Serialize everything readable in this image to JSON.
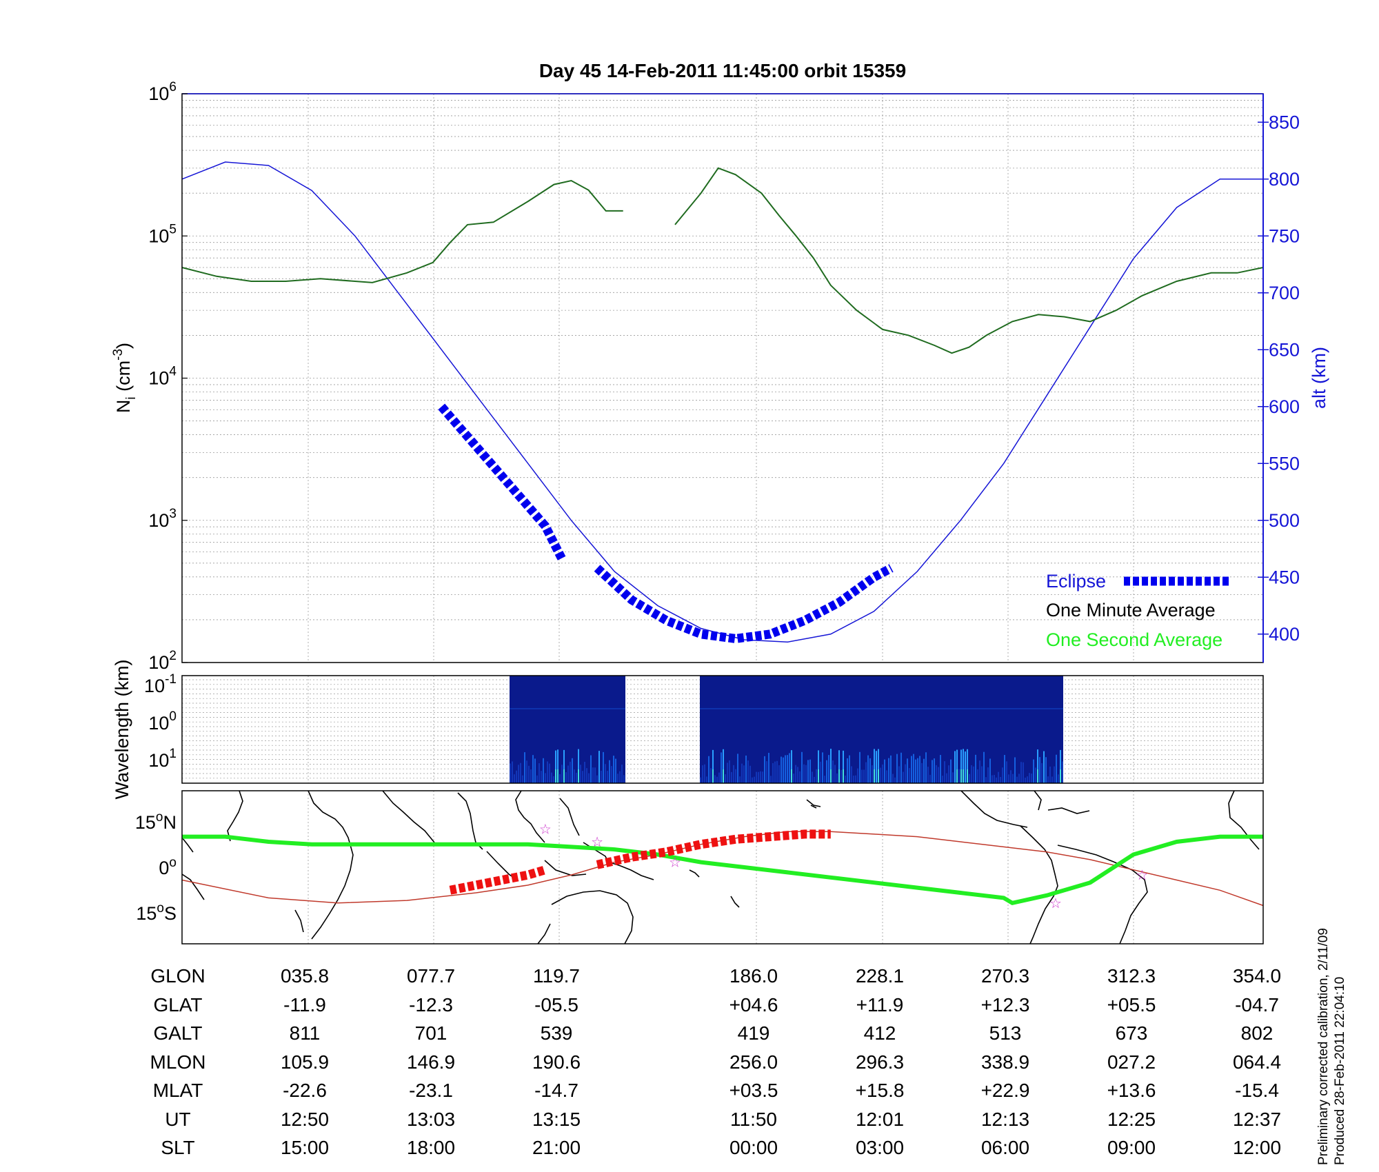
{
  "title": "Day 45  14-Feb-2011 11:45:00   orbit 15359",
  "colors": {
    "density_line": "#1f6b1f",
    "altitude_line": "#1515d6",
    "eclipse": "#0000ee",
    "track": "#22ee22",
    "magnetic_equator": "#c0392b",
    "eclipse_track": "#ee1111",
    "spectrum_bg": "#0a1a8c",
    "grid": "#999999"
  },
  "chart_data": [
    {
      "type": "line",
      "ylabel": "N_i (cm^-3)",
      "ylabel_parts": {
        "base": "N",
        "sub": "i",
        "unit": " (cm",
        "sup": "-3",
        "close": ")"
      },
      "y2label": "alt (km)",
      "yscale": "log",
      "ylim": [
        100,
        1000000
      ],
      "y_ticks": [
        {
          "base": "10",
          "exp": "2"
        },
        {
          "base": "10",
          "exp": "3"
        },
        {
          "base": "10",
          "exp": "4"
        },
        {
          "base": "10",
          "exp": "5"
        },
        {
          "base": "10",
          "exp": "6"
        }
      ],
      "y2lim": [
        375,
        875
      ],
      "y2_ticks": [
        "400",
        "450",
        "500",
        "550",
        "600",
        "650",
        "700",
        "750",
        "800",
        "850"
      ],
      "grid": true,
      "legend": {
        "placement": "bottom-right",
        "entries": [
          {
            "name": "Eclipse",
            "color": "#0000ee"
          },
          {
            "name": "One Minute Average",
            "color": "#000000"
          },
          {
            "name": "One Second Average",
            "color": "#22ee22"
          }
        ]
      },
      "series": [
        {
          "name": "One Minute Average",
          "color": "#1f6b1f",
          "axis": "left",
          "segments": [
            [
              [
                0.0,
                60000
              ],
              [
                0.04,
                52000
              ],
              [
                0.08,
                48000
              ],
              [
                0.12,
                48000
              ],
              [
                0.16,
                50000
              ],
              [
                0.2,
                48000
              ],
              [
                0.22,
                47000
              ],
              [
                0.26,
                55000
              ],
              [
                0.29,
                65000
              ],
              [
                0.31,
                90000
              ],
              [
                0.33,
                120000
              ],
              [
                0.36,
                125000
              ],
              [
                0.4,
                175000
              ],
              [
                0.43,
                230000
              ],
              [
                0.45,
                245000
              ],
              [
                0.47,
                210000
              ],
              [
                0.49,
                150000
              ],
              [
                0.51,
                150000
              ]
            ],
            [
              [
                0.57,
                120000
              ],
              [
                0.6,
                200000
              ],
              [
                0.62,
                300000
              ],
              [
                0.64,
                270000
              ],
              [
                0.67,
                200000
              ],
              [
                0.69,
                140000
              ],
              [
                0.71,
                100000
              ],
              [
                0.73,
                70000
              ],
              [
                0.75,
                45000
              ],
              [
                0.78,
                30000
              ],
              [
                0.81,
                22000
              ],
              [
                0.84,
                20000
              ],
              [
                0.87,
                17000
              ],
              [
                0.89,
                15000
              ],
              [
                0.91,
                16500
              ],
              [
                0.93,
                20000
              ],
              [
                0.96,
                25000
              ],
              [
                0.99,
                28000
              ],
              [
                1.02,
                27000
              ],
              [
                1.05,
                25000
              ],
              [
                1.08,
                30000
              ],
              [
                1.11,
                38000
              ],
              [
                1.15,
                48000
              ],
              [
                1.19,
                55000
              ],
              [
                1.22,
                55000
              ],
              [
                1.25,
                60000
              ]
            ]
          ]
        },
        {
          "name": "alt",
          "color": "#1515d6",
          "axis": "right",
          "x": [
            0.0,
            0.05,
            0.1,
            0.15,
            0.2,
            0.25,
            0.3,
            0.35,
            0.4,
            0.45,
            0.5,
            0.55,
            0.6,
            0.65,
            0.7,
            0.75,
            0.8,
            0.85,
            0.9,
            0.95,
            1.0,
            1.05,
            1.1,
            1.15,
            1.2,
            1.25
          ],
          "y": [
            800,
            815,
            812,
            790,
            750,
            700,
            650,
            600,
            550,
            500,
            455,
            425,
            405,
            395,
            393,
            400,
            420,
            455,
            500,
            550,
            610,
            670,
            730,
            775,
            800,
            800
          ]
        }
      ],
      "eclipse_segments": [
        [
          [
            0.3,
            600
          ],
          [
            0.34,
            565
          ],
          [
            0.38,
            530
          ],
          [
            0.42,
            495
          ],
          [
            0.44,
            465
          ]
        ],
        [
          [
            0.48,
            458
          ],
          [
            0.52,
            430
          ],
          [
            0.56,
            412
          ],
          [
            0.6,
            400
          ],
          [
            0.64,
            396
          ],
          [
            0.68,
            400
          ],
          [
            0.72,
            412
          ],
          [
            0.76,
            428
          ],
          [
            0.8,
            450
          ],
          [
            0.82,
            458
          ]
        ]
      ]
    },
    {
      "type": "heatmap",
      "ylabel": "Wavelength (km)",
      "yscale": "log",
      "y_ticks": [
        {
          "base": "10",
          "exp": "-1"
        },
        {
          "base": "10",
          "exp": "0"
        },
        {
          "base": "10",
          "exp": "1"
        }
      ],
      "data_intervals": [
        [
          0.305,
          0.412
        ],
        [
          0.481,
          0.82
        ]
      ],
      "note": "spectrogram of density irregularities; values shown only as color"
    },
    {
      "type": "line",
      "chart": "orbit-track-map",
      "y_ticks": [
        {
          "deg": "15",
          "sym": "o",
          "hem": "N"
        },
        {
          "deg": "0",
          "sym": "o",
          "hem": ""
        },
        {
          "deg": "15",
          "sym": "o",
          "hem": "S"
        }
      ],
      "ylim": [
        -30,
        30
      ],
      "satellite_track": [
        [
          0.0,
          12
        ],
        [
          0.05,
          12
        ],
        [
          0.1,
          10
        ],
        [
          0.15,
          9
        ],
        [
          0.2,
          9
        ],
        [
          0.25,
          9
        ],
        [
          0.3,
          9
        ],
        [
          0.35,
          9
        ],
        [
          0.4,
          9
        ],
        [
          0.45,
          8
        ],
        [
          0.5,
          7
        ],
        [
          0.55,
          5
        ],
        [
          0.6,
          2
        ],
        [
          0.65,
          0
        ],
        [
          0.7,
          -2
        ],
        [
          0.75,
          -4
        ],
        [
          0.8,
          -6
        ],
        [
          0.85,
          -8
        ],
        [
          0.9,
          -10
        ],
        [
          0.95,
          -12
        ],
        [
          0.96,
          -14
        ],
        [
          1.0,
          -11
        ],
        [
          1.05,
          -6
        ],
        [
          1.1,
          5
        ],
        [
          1.15,
          10
        ],
        [
          1.2,
          12
        ],
        [
          1.25,
          12
        ]
      ],
      "magnetic_equator": [
        [
          0.0,
          -5
        ],
        [
          0.1,
          -12
        ],
        [
          0.18,
          -14
        ],
        [
          0.26,
          -13
        ],
        [
          0.34,
          -10
        ],
        [
          0.4,
          -7
        ],
        [
          0.45,
          -3
        ],
        [
          0.5,
          2
        ],
        [
          0.55,
          5
        ],
        [
          0.6,
          9
        ],
        [
          0.65,
          12
        ],
        [
          0.7,
          14
        ],
        [
          0.75,
          14
        ],
        [
          0.8,
          13
        ],
        [
          0.85,
          12
        ],
        [
          0.9,
          10
        ],
        [
          0.95,
          8
        ],
        [
          1.0,
          6
        ],
        [
          1.05,
          3
        ],
        [
          1.1,
          -1
        ],
        [
          1.15,
          -5
        ],
        [
          1.2,
          -9
        ],
        [
          1.25,
          -15
        ]
      ],
      "eclipse_track_segments": [
        [
          [
            0.31,
            -9
          ],
          [
            0.34,
            -7
          ],
          [
            0.37,
            -5
          ],
          [
            0.4,
            -3
          ],
          [
            0.42,
            -1
          ]
        ],
        [
          [
            0.48,
            1
          ],
          [
            0.52,
            4
          ],
          [
            0.56,
            6
          ],
          [
            0.6,
            9
          ],
          [
            0.64,
            11
          ],
          [
            0.68,
            12
          ],
          [
            0.72,
            13
          ],
          [
            0.75,
            13
          ]
        ]
      ],
      "stars": [
        [
          0.42,
          15
        ],
        [
          0.48,
          10
        ],
        [
          0.57,
          2
        ],
        [
          1.01,
          -14
        ],
        [
          1.11,
          -3
        ]
      ]
    }
  ],
  "table": {
    "row_names": [
      "GLON",
      "GLAT",
      "GALT",
      "MLON",
      "MLAT",
      "UT",
      "SLT"
    ],
    "columns": [
      [
        "035.8",
        "-11.9",
        "811",
        "105.9",
        "-22.6",
        "12:50",
        "15:00"
      ],
      [
        "077.7",
        "-12.3",
        "701",
        "146.9",
        "-23.1",
        "13:03",
        "18:00"
      ],
      [
        "119.7",
        "-05.5",
        "539",
        "190.6",
        "-14.7",
        "13:15",
        "21:00"
      ],
      [
        "186.0",
        "+04.6",
        "419",
        "256.0",
        "+03.5",
        "11:50",
        "00:00"
      ],
      [
        "228.1",
        "+11.9",
        "412",
        "296.3",
        "+15.8",
        "12:01",
        "03:00"
      ],
      [
        "270.3",
        "+12.3",
        "513",
        "338.9",
        "+22.9",
        "12:13",
        "06:00"
      ],
      [
        "312.3",
        "+05.5",
        "673",
        "027.2",
        "+13.6",
        "12:25",
        "09:00"
      ],
      [
        "354.0",
        "-04.7",
        "802",
        "064.4",
        "-15.4",
        "12:37",
        "12:00"
      ]
    ]
  },
  "footnote": {
    "line1": "Preliminary corrected calibration, 2/11/09",
    "line2": "Produced 28-Feb-2011 22:04:10"
  }
}
